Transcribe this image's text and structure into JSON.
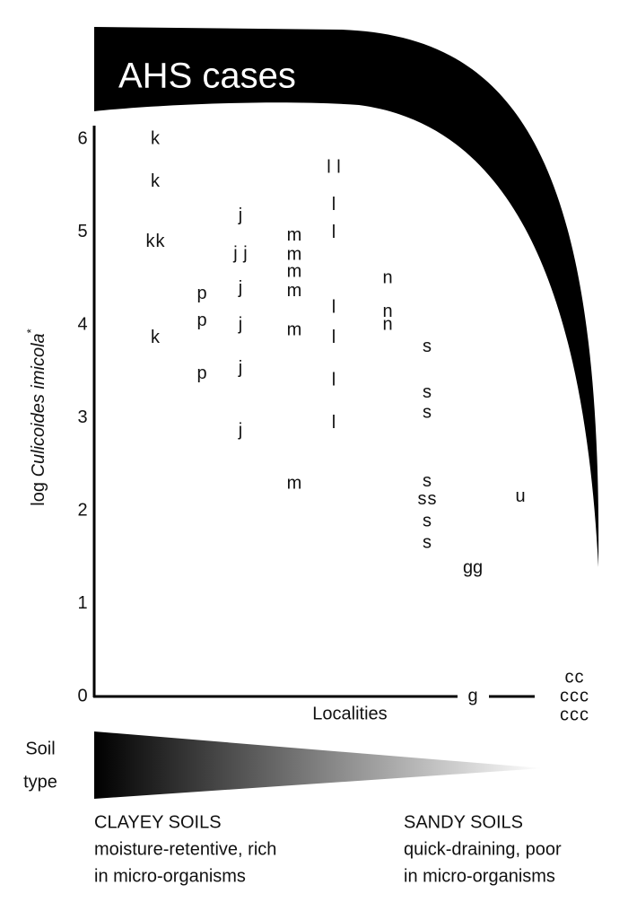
{
  "chart_data": {
    "type": "scatter",
    "banner": "AHS cases",
    "y_label": {
      "prefix": "log",
      "species": "Culicoides imicola",
      "note_mark": "*"
    },
    "x_label": "Localities",
    "ylim": [
      0,
      6
    ],
    "yticks": [
      0,
      1,
      2,
      3,
      4,
      5,
      6
    ],
    "color": "#111111",
    "series": [
      {
        "name": "k",
        "values": [
          6.0,
          5.54,
          4.89,
          4.89,
          3.86
        ]
      },
      {
        "name": "p",
        "values": [
          4.33,
          4.04,
          3.47
        ]
      },
      {
        "name": "j",
        "values": [
          5.17,
          4.76,
          4.76,
          4.39,
          4.0,
          3.53,
          2.86
        ]
      },
      {
        "name": "m",
        "values": [
          4.96,
          4.75,
          4.57,
          4.36,
          3.94,
          2.29
        ]
      },
      {
        "name": "l",
        "values": [
          5.69,
          5.69,
          5.29,
          4.99,
          4.18,
          3.86,
          3.4,
          2.94
        ]
      },
      {
        "name": "n",
        "values": [
          4.5,
          4.14,
          4.0
        ]
      },
      {
        "name": "s",
        "values": [
          3.76,
          3.27,
          3.05,
          2.31,
          2.12,
          2.12,
          1.88,
          1.65
        ]
      },
      {
        "name": "g",
        "values": [
          1.38,
          1.38,
          0
        ]
      },
      {
        "name": "u",
        "values": [
          2.15
        ]
      },
      {
        "name": "c",
        "values": [
          0,
          0,
          0,
          0,
          0,
          0,
          0,
          0
        ]
      }
    ]
  },
  "soil_legend": {
    "title": [
      "Soil",
      "type"
    ],
    "left": {
      "title": "CLAYEY SOILS",
      "lines": [
        "moisture-retentive, rich",
        "in micro-organisms"
      ]
    },
    "right": {
      "title": "SANDY SOILS",
      "lines": [
        "quick-draining, poor",
        "in micro-organisms"
      ]
    }
  }
}
